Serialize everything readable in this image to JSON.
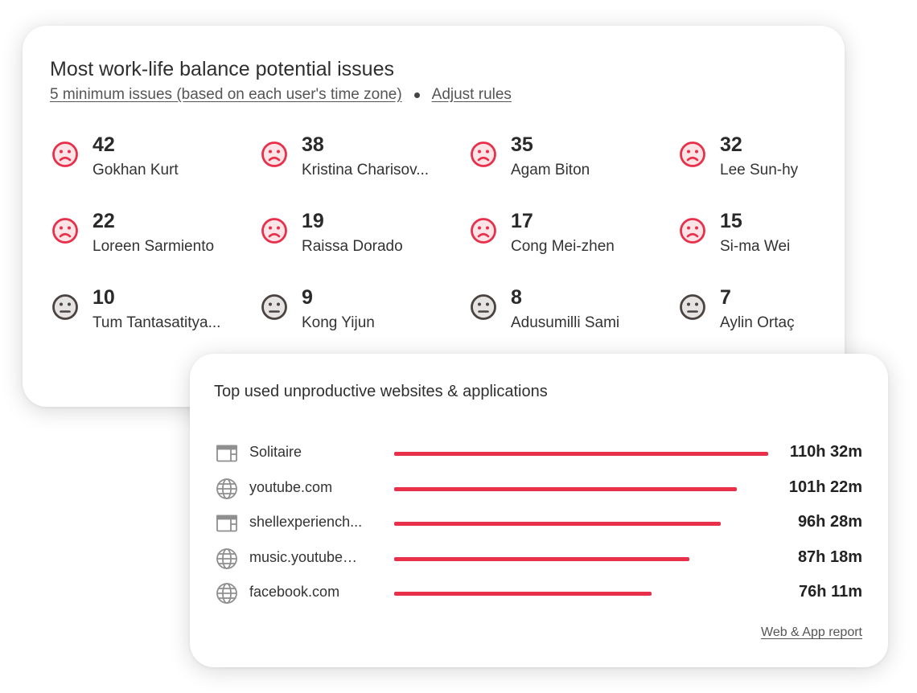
{
  "worklife": {
    "title": "Most work-life balance potential issues",
    "rule_link": "5 minimum issues (based on each user's time zone)",
    "adjust_link": "Adjust rules",
    "colors": {
      "sad": "#e8304a",
      "sad_fill": "#fde4e7",
      "neutral": "#4a4340",
      "neutral_fill": "#e6e4e3"
    },
    "people": [
      {
        "count": "42",
        "name": "Gokhan Kurt",
        "mood": "sad-face-icon"
      },
      {
        "count": "38",
        "name": "Kristina Charisov...",
        "mood": "sad-face-icon"
      },
      {
        "count": "35",
        "name": "Agam Biton",
        "mood": "sad-face-icon"
      },
      {
        "count": "32",
        "name": "Lee Sun-hy",
        "mood": "sad-face-icon"
      },
      {
        "count": "22",
        "name": "Loreen Sarmiento",
        "mood": "sad-face-icon"
      },
      {
        "count": "19",
        "name": "Raissa Dorado",
        "mood": "sad-face-icon"
      },
      {
        "count": "17",
        "name": "Cong Mei-zhen",
        "mood": "sad-face-icon"
      },
      {
        "count": "15",
        "name": "Si-ma Wei",
        "mood": "sad-face-icon"
      },
      {
        "count": "10",
        "name": "Tum Tantasatitya...",
        "mood": "neutral-face-icon"
      },
      {
        "count": "9",
        "name": "Kong Yijun",
        "mood": "neutral-face-icon"
      },
      {
        "count": "8",
        "name": "Adusumilli Sami",
        "mood": "neutral-face-icon"
      },
      {
        "count": "7",
        "name": "Aylin Ortaç",
        "mood": "neutral-face-icon"
      }
    ]
  },
  "apps": {
    "title": "Top used unproductive websites & applications",
    "bar_color": "#e8304a",
    "items": [
      {
        "name": "Solitaire",
        "icon": "app-window-icon",
        "time": "110h 32m",
        "hours": 110.53
      },
      {
        "name": "youtube.com",
        "icon": "globe-icon",
        "time": "101h 22m",
        "hours": 101.37
      },
      {
        "name": "shellexperiench...",
        "icon": "app-window-icon",
        "time": "96h 28m",
        "hours": 96.47
      },
      {
        "name": "music.youtube…",
        "icon": "globe-icon",
        "time": "87h 18m",
        "hours": 87.3
      },
      {
        "name": "facebook.com",
        "icon": "globe-icon",
        "time": "76h 11m",
        "hours": 76.18
      }
    ],
    "report_link": "Web & App report"
  }
}
